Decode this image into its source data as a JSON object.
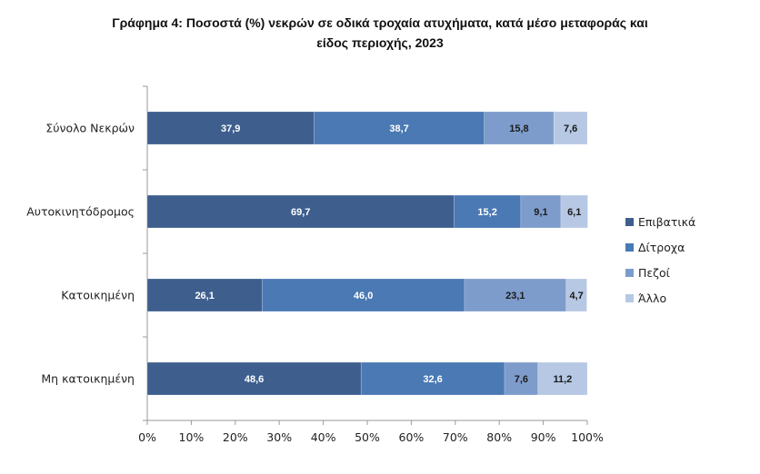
{
  "title_line1": "Γράφημα 4: Ποσοστά (%) νεκρών σε οδικά τροχαία ατυχήματα, κατά μέσο μεταφοράς και",
  "title_line2": "είδος περιοχής, 2023",
  "chart_data": {
    "type": "bar",
    "orientation": "horizontal",
    "stacked": "percent",
    "title": "Γράφημα 4: Ποσοστά (%) νεκρών σε οδικά τροχαία ατυχήματα, κατά μέσο μεταφοράς και είδος περιοχής, 2023",
    "categories": [
      "Σύνολο Νεκρών",
      "Αυτοκινητόδρομος",
      "Κατοικημένη",
      "Μη κατοικημένη"
    ],
    "series": [
      {
        "name": "Επιβατικά",
        "color": "#3e5f8e",
        "values": [
          37.9,
          69.7,
          26.1,
          48.6
        ],
        "labels": [
          "37,9",
          "69,7",
          "26,1",
          "48,6"
        ]
      },
      {
        "name": "Δίτροχα",
        "color": "#4a79b4",
        "values": [
          38.7,
          15.2,
          46.0,
          32.6
        ],
        "labels": [
          "38,7",
          "15,2",
          "46,0",
          "32,6"
        ]
      },
      {
        "name": "Πεζοί",
        "color": "#7e9ccb",
        "values": [
          15.8,
          9.1,
          23.1,
          7.6
        ],
        "labels": [
          "15,8",
          "9,1",
          "23,1",
          "7,6"
        ]
      },
      {
        "name": "Άλλο",
        "color": "#b6c8e3",
        "values": [
          7.6,
          6.1,
          4.7,
          11.2
        ],
        "labels": [
          "7,6",
          "6,1",
          "4,7",
          "11,2"
        ]
      }
    ],
    "xlim": [
      0,
      100
    ],
    "xticks": [
      "0%",
      "10%",
      "20%",
      "30%",
      "40%",
      "50%",
      "60%",
      "70%",
      "80%",
      "90%",
      "100%"
    ],
    "legend_position": "right",
    "grid": false
  }
}
